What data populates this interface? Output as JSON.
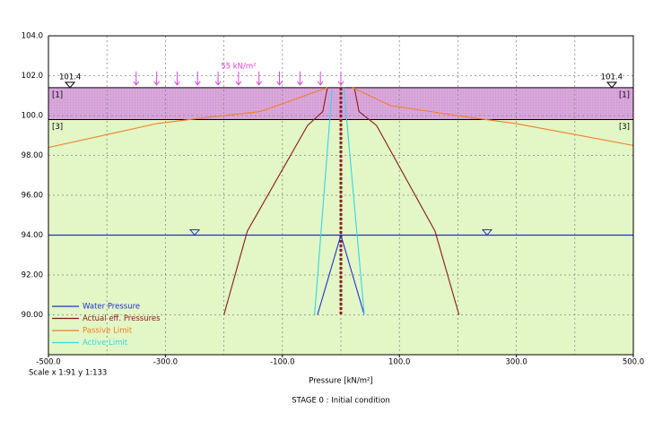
{
  "chart_data": {
    "type": "line",
    "xlabel": "Pressure [kN/m²]",
    "scale_note": "Scale x 1:91  y 1:133",
    "caption": "STAGE 0 : Initial condition",
    "xlim": [
      -500,
      500
    ],
    "ylim": [
      88,
      104
    ],
    "xticks": [
      {
        "value": -500,
        "label": "-500.0"
      },
      {
        "value": -300,
        "label": "-300.0"
      },
      {
        "value": -100,
        "label": "-100.0"
      },
      {
        "value": 100,
        "label": "100.0"
      },
      {
        "value": 300,
        "label": "300.0"
      },
      {
        "value": 500,
        "label": "500.0"
      }
    ],
    "xgrid": [
      -400,
      -300,
      -200,
      -100,
      0,
      100,
      200,
      300,
      400
    ],
    "yticks": [
      {
        "value": 90,
        "label": "90.00"
      },
      {
        "value": 92,
        "label": "92.00"
      },
      {
        "value": 94,
        "label": "94.00"
      },
      {
        "value": 96,
        "label": "96.00"
      },
      {
        "value": 98,
        "label": "98.00"
      },
      {
        "value": 100,
        "label": "100.0"
      },
      {
        "value": 102,
        "label": "102.0"
      },
      {
        "value": 104,
        "label": "104.0"
      }
    ],
    "grid": true,
    "layers": [
      {
        "label": "[1]",
        "top": 101.4,
        "bottom": 99.8,
        "color": "#d9a6dc"
      },
      {
        "label": "[3]",
        "top": 99.8,
        "bottom": 88,
        "color": "#e2f6c6"
      }
    ],
    "surface_level": 101.4,
    "water_level": 94,
    "wall_bottom": 90,
    "surcharge": {
      "label": "55 kN/m²",
      "from": -350,
      "to": 0,
      "color": "#e040e0"
    },
    "series": [
      {
        "name": "Water Pressure",
        "color": "#2030d0",
        "x": [
          -40,
          0,
          40
        ],
        "values": [
          90,
          94,
          90
        ]
      },
      {
        "name": "Actual eff. Pressures",
        "color": "#8b1a1a",
        "x": [
          -200,
          -160,
          -57,
          -31,
          -23,
          null,
          23,
          31,
          61,
          161,
          202
        ],
        "values": [
          90,
          94.2,
          99.5,
          100.2,
          101.4,
          null,
          101.4,
          100.2,
          99.5,
          94.2,
          90
        ]
      },
      {
        "name": "Passive Limit",
        "color": "#f08020",
        "x": [
          -500,
          -314,
          -230,
          -138,
          -23,
          null,
          20,
          85,
          222,
          299,
          500
        ],
        "values": [
          98.4,
          99.6,
          99.9,
          100.2,
          101.4,
          null,
          101.4,
          100.5,
          99.9,
          99.6,
          98.5
        ]
      },
      {
        "name": "Active Limit",
        "color": "#30d8e8",
        "x": [
          -45,
          -15,
          null,
          5,
          40
        ],
        "values": [
          90,
          101.3,
          null,
          101.4,
          90
        ]
      }
    ]
  }
}
